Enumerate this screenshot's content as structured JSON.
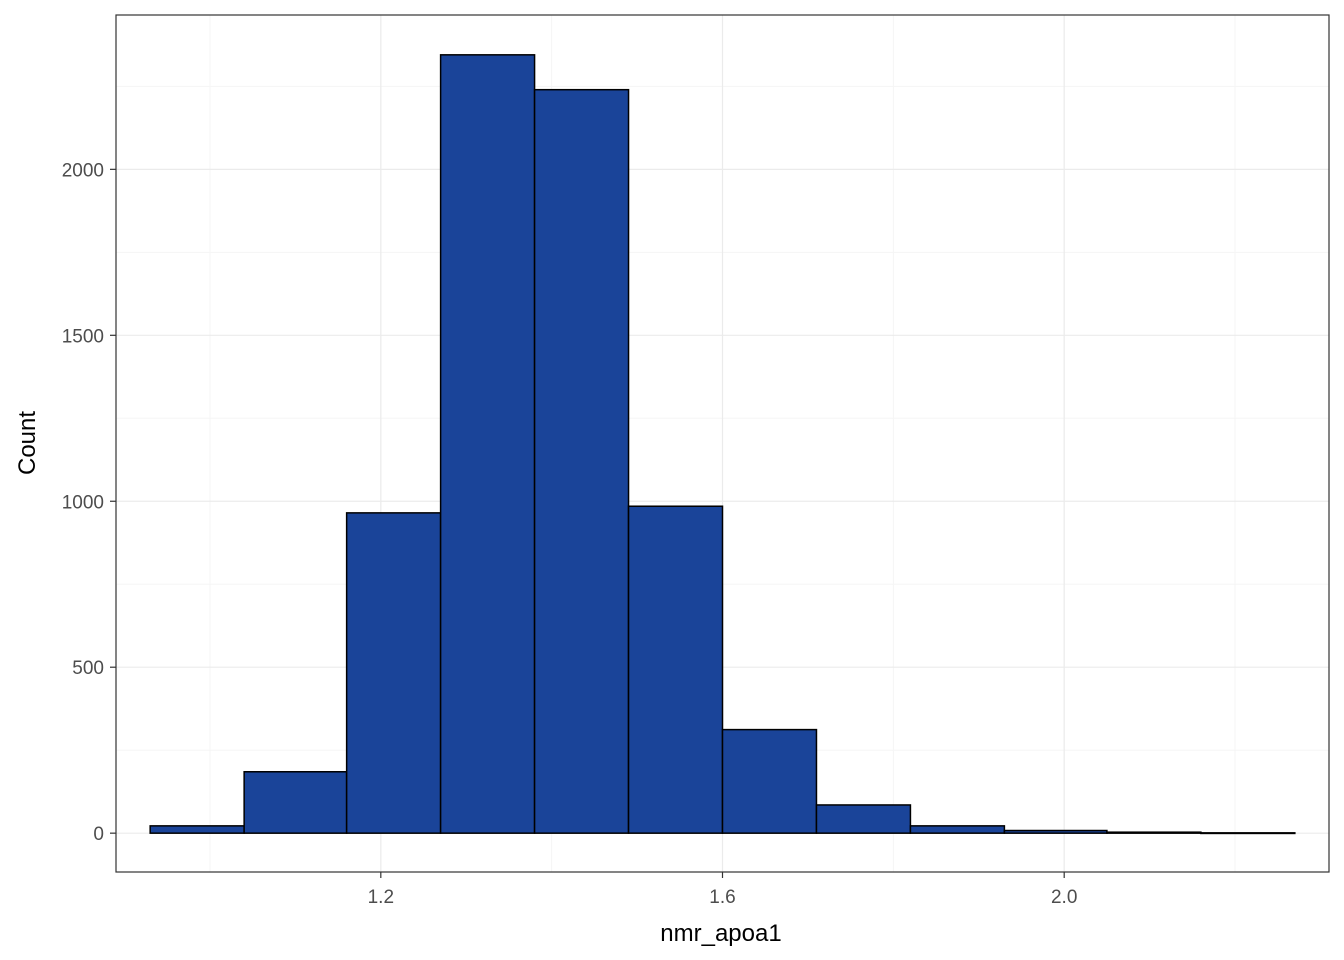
{
  "chart_data": {
    "type": "bar",
    "subtype": "histogram",
    "title": "",
    "xlabel": "nmr_apoa1",
    "ylabel": "Count",
    "bins": [
      {
        "x0": 0.93,
        "x1": 1.04,
        "count": 22
      },
      {
        "x0": 1.04,
        "x1": 1.16,
        "count": 185
      },
      {
        "x0": 1.16,
        "x1": 1.27,
        "count": 965
      },
      {
        "x0": 1.27,
        "x1": 1.38,
        "count": 2345
      },
      {
        "x0": 1.38,
        "x1": 1.49,
        "count": 2240
      },
      {
        "x0": 1.49,
        "x1": 1.6,
        "count": 985
      },
      {
        "x0": 1.6,
        "x1": 1.71,
        "count": 312
      },
      {
        "x0": 1.71,
        "x1": 1.82,
        "count": 85
      },
      {
        "x0": 1.82,
        "x1": 1.93,
        "count": 22
      },
      {
        "x0": 1.93,
        "x1": 2.05,
        "count": 8
      },
      {
        "x0": 2.05,
        "x1": 2.16,
        "count": 3
      },
      {
        "x0": 2.16,
        "x1": 2.27,
        "count": 1
      }
    ],
    "xlim": [
      0.89,
      2.31
    ],
    "ylim": [
      -117,
      2465
    ],
    "x_ticks": [
      {
        "value": 1.2,
        "label": "1.2"
      },
      {
        "value": 1.6,
        "label": "1.6"
      },
      {
        "value": 2.0,
        "label": "2.0"
      }
    ],
    "x_minor_ticks": [
      1.0,
      1.4,
      1.8,
      2.2
    ],
    "y_ticks": [
      {
        "value": 0,
        "label": "0"
      },
      {
        "value": 500,
        "label": "500"
      },
      {
        "value": 1000,
        "label": "1000"
      },
      {
        "value": 1500,
        "label": "1500"
      },
      {
        "value": 2000,
        "label": "2000"
      }
    ],
    "y_minor_ticks": [
      250,
      750,
      1250,
      1750,
      2250
    ],
    "grid": true,
    "legend": "none",
    "colors": {
      "bar_fill": "#1a4499",
      "bar_stroke": "#000000",
      "grid_major": "#ebebeb",
      "grid_minor": "#f5f5f5",
      "panel_border": "#333333",
      "tick_text": "#4d4d4d"
    }
  }
}
